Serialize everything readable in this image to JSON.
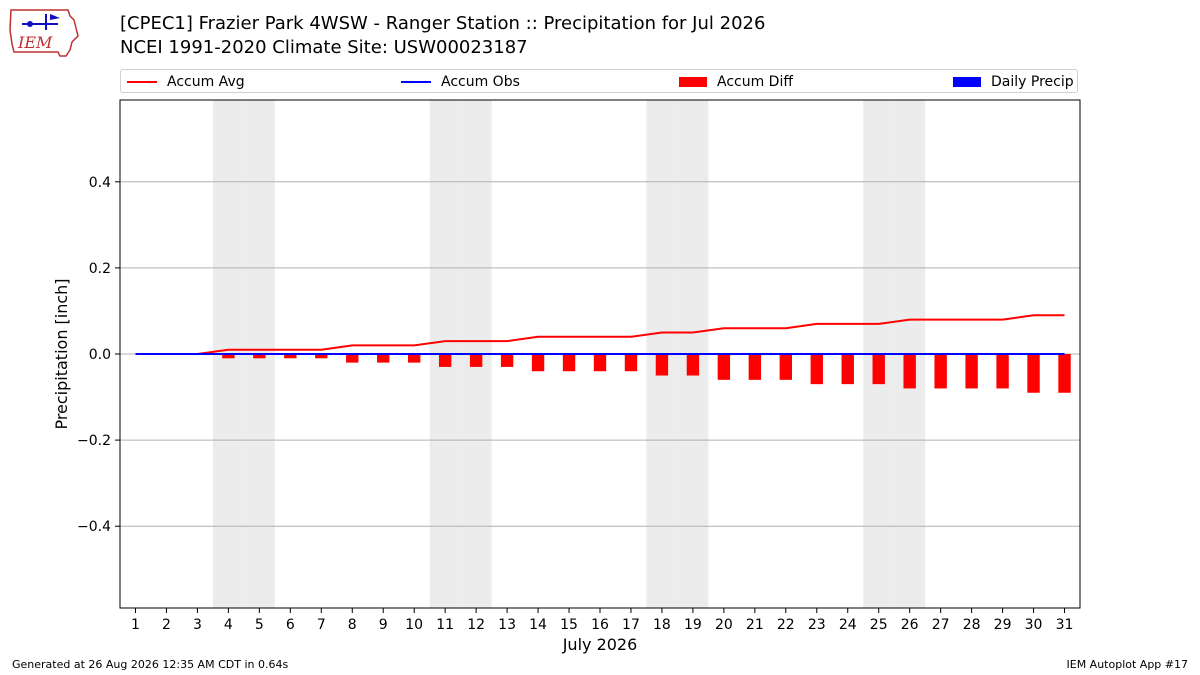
{
  "header": {
    "logo_text": "IEM",
    "title_line1": "[CPEC1] Frazier Park 4WSW - Ranger Station :: Precipitation for Jul 2026",
    "title_line2": "NCEI 1991-2020 Climate Site: USW00023187"
  },
  "legend": [
    {
      "label": "Accum Avg",
      "color": "#ff0000",
      "kind": "line"
    },
    {
      "label": "Accum Obs",
      "color": "#0000ff",
      "kind": "line"
    },
    {
      "label": "Accum Diff",
      "color": "#ff0000",
      "kind": "bar"
    },
    {
      "label": "Daily Precip",
      "color": "#0000ff",
      "kind": "bar"
    }
  ],
  "chart_data": {
    "type": "line",
    "title": "[CPEC1] Frazier Park 4WSW - Ranger Station :: Precipitation for Jul 2026",
    "xlabel": "July 2026",
    "ylabel": "Precipitation [inch]",
    "ylim": [
      -0.59,
      0.59
    ],
    "yticks": [
      -0.4,
      -0.2,
      0.0,
      0.2,
      0.4
    ],
    "ytick_labels": [
      "−0.4",
      "−0.2",
      "0.0",
      "0.2",
      "0.4"
    ],
    "grid": "horizontal",
    "legend_position": "top",
    "weekend_days": [
      4,
      5,
      11,
      12,
      18,
      19,
      25,
      26
    ],
    "x": [
      1,
      2,
      3,
      4,
      5,
      6,
      7,
      8,
      9,
      10,
      11,
      12,
      13,
      14,
      15,
      16,
      17,
      18,
      19,
      20,
      21,
      22,
      23,
      24,
      25,
      26,
      27,
      28,
      29,
      30,
      31
    ],
    "series": [
      {
        "name": "Accum Avg",
        "type": "line",
        "color": "#ff0000",
        "values": [
          0.0,
          0.0,
          0.0,
          0.01,
          0.01,
          0.01,
          0.01,
          0.02,
          0.02,
          0.02,
          0.03,
          0.03,
          0.03,
          0.04,
          0.04,
          0.04,
          0.04,
          0.05,
          0.05,
          0.06,
          0.06,
          0.06,
          0.07,
          0.07,
          0.07,
          0.08,
          0.08,
          0.08,
          0.08,
          0.09,
          0.09
        ]
      },
      {
        "name": "Accum Obs",
        "type": "line",
        "color": "#0000ff",
        "values": [
          0.0,
          0.0,
          0.0,
          0.0,
          0.0,
          0.0,
          0.0,
          0.0,
          0.0,
          0.0,
          0.0,
          0.0,
          0.0,
          0.0,
          0.0,
          0.0,
          0.0,
          0.0,
          0.0,
          0.0,
          0.0,
          0.0,
          0.0,
          0.0,
          0.0,
          0.0,
          0.0,
          0.0,
          0.0,
          0.0,
          0.0
        ]
      },
      {
        "name": "Accum Diff",
        "type": "bar",
        "color": "#ff0000",
        "values": [
          0.0,
          0.0,
          0.0,
          -0.01,
          -0.01,
          -0.01,
          -0.01,
          -0.02,
          -0.02,
          -0.02,
          -0.03,
          -0.03,
          -0.03,
          -0.04,
          -0.04,
          -0.04,
          -0.04,
          -0.05,
          -0.05,
          -0.06,
          -0.06,
          -0.06,
          -0.07,
          -0.07,
          -0.07,
          -0.08,
          -0.08,
          -0.08,
          -0.08,
          -0.09,
          -0.09
        ]
      },
      {
        "name": "Daily Precip",
        "type": "bar",
        "color": "#0000ff",
        "values": [
          0.0,
          0.0,
          0.0,
          0.0,
          0.0,
          0.0,
          0.0,
          0.0,
          0.0,
          0.0,
          0.0,
          0.0,
          0.0,
          0.0,
          0.0,
          0.0,
          0.0,
          0.0,
          0.0,
          0.0,
          0.0,
          0.0,
          0.0,
          0.0,
          0.0,
          0.0,
          0.0,
          0.0,
          0.0,
          0.0,
          0.0
        ]
      }
    ]
  },
  "footer": {
    "generated": "Generated at 26 Aug 2026 12:35 AM CDT in 0.64s",
    "app": "IEM Autoplot App #17"
  }
}
